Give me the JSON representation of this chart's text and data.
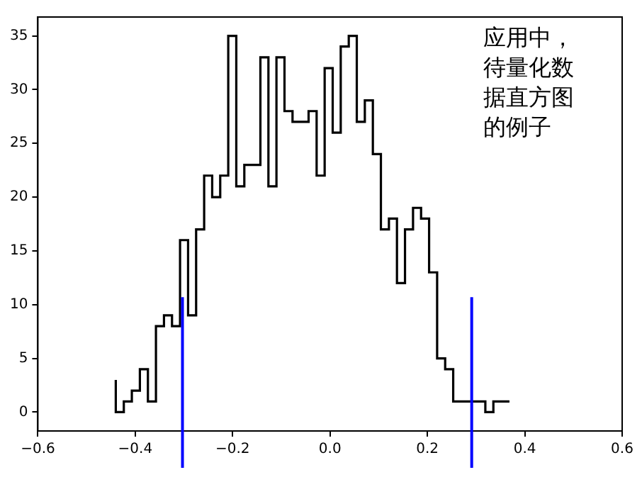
{
  "chart_data": {
    "type": "step",
    "x": [
      -0.44,
      -0.4235,
      -0.407,
      -0.3905,
      -0.374,
      -0.3575,
      -0.341,
      -0.3245,
      -0.308,
      -0.2915,
      -0.275,
      -0.2585,
      -0.242,
      -0.2255,
      -0.209,
      -0.1925,
      -0.176,
      -0.1595,
      -0.143,
      -0.1265,
      -0.11,
      -0.0935,
      -0.077,
      -0.0605,
      -0.044,
      -0.0275,
      -0.011,
      0.0055,
      0.022,
      0.0385,
      0.055,
      0.0715,
      0.088,
      0.1045,
      0.121,
      0.1375,
      0.154,
      0.1705,
      0.187,
      0.2035,
      0.22,
      0.2365,
      0.253,
      0.2695,
      0.286,
      0.3025,
      0.319,
      0.3355,
      0.352,
      0.3685
    ],
    "values": [
      3,
      0,
      1,
      2,
      4,
      1,
      8,
      9,
      8,
      16,
      9,
      17,
      22,
      20,
      22,
      35,
      21,
      23,
      23,
      33,
      21,
      33,
      28,
      27,
      27,
      28,
      22,
      32,
      26,
      34,
      35,
      27,
      29,
      24,
      17,
      18,
      12,
      17,
      19,
      18,
      13,
      5,
      4,
      1,
      1,
      1,
      1,
      0,
      1,
      1
    ],
    "color": "#000000",
    "xlim": [
      -0.6,
      0.6
    ],
    "xticks": [
      {
        "value": -0.6,
        "label": "−0.6"
      },
      {
        "value": -0.4,
        "label": "−0.4"
      },
      {
        "value": -0.2,
        "label": "−0.2"
      },
      {
        "value": 0,
        "label": "0.0"
      },
      0.2,
      0.4,
      0.6
    ],
    "ylim": [
      -1.75,
      36.75
    ],
    "yticks": [
      0,
      5,
      10,
      15,
      20,
      25,
      30,
      35
    ],
    "grid": false,
    "legend": false,
    "ref_lines": [
      {
        "axis": "x",
        "value": -0.303,
        "color": "#0000ff"
      },
      {
        "axis": "x",
        "value": 0.291,
        "color": "#0000ff"
      }
    ],
    "annotations": [
      "应用中，待量化数据直方图的例子"
    ]
  }
}
